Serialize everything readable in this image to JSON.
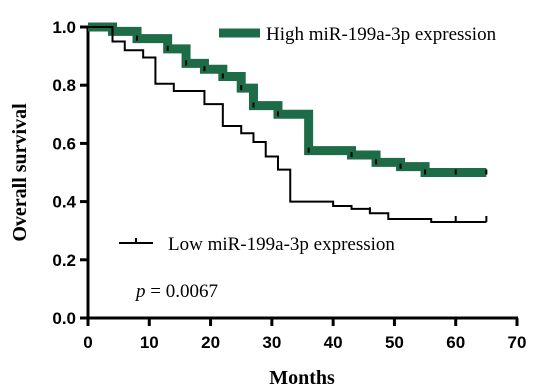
{
  "chart_data": {
    "type": "line",
    "xlabel": "Months",
    "ylabel": "Overall survival",
    "xlim": [
      0,
      70
    ],
    "ylim": [
      0.0,
      1.0
    ],
    "xticks": [
      0,
      10,
      20,
      30,
      40,
      50,
      60,
      70
    ],
    "yticks": [
      0.0,
      0.2,
      0.4,
      0.6,
      0.8,
      1.0
    ],
    "xtick_labels": [
      "0",
      "10",
      "20",
      "30",
      "40",
      "50",
      "60",
      "70"
    ],
    "ytick_labels": [
      "0.0",
      "0.2",
      "0.4",
      "0.6",
      "0.8",
      "1.0"
    ],
    "grid": false,
    "annotation": {
      "prefix": "p",
      "text": " = 0.0067"
    },
    "series": [
      {
        "name": "High miR-199a-3p expression",
        "color": "#1e6b47",
        "style": "thick",
        "x": [
          0,
          4,
          8,
          13,
          16,
          19,
          22,
          25,
          27,
          31,
          36,
          43,
          47,
          51,
          55,
          60,
          65
        ],
        "y": [
          1.0,
          0.985,
          0.96,
          0.925,
          0.875,
          0.855,
          0.83,
          0.79,
          0.73,
          0.7,
          0.575,
          0.56,
          0.535,
          0.52,
          0.5,
          0.5,
          0.5
        ],
        "censor_x": [
          4,
          8,
          13,
          16,
          19,
          22,
          25,
          27,
          31,
          36,
          43,
          47,
          51,
          55,
          60,
          65
        ]
      },
      {
        "name": "Low miR-199a-3p expression",
        "color": "#000000",
        "style": "thin",
        "x": [
          0,
          4,
          6,
          9,
          11,
          14,
          19,
          22,
          25,
          27,
          29,
          31,
          33,
          36,
          40,
          43,
          46,
          49,
          56,
          60,
          65
        ],
        "y": [
          1.0,
          0.95,
          0.92,
          0.895,
          0.805,
          0.78,
          0.735,
          0.66,
          0.635,
          0.605,
          0.555,
          0.51,
          0.4,
          0.4,
          0.385,
          0.375,
          0.36,
          0.34,
          0.33,
          0.33,
          0.33
        ],
        "censor_x": [
          4,
          46,
          60,
          65
        ]
      }
    ]
  }
}
